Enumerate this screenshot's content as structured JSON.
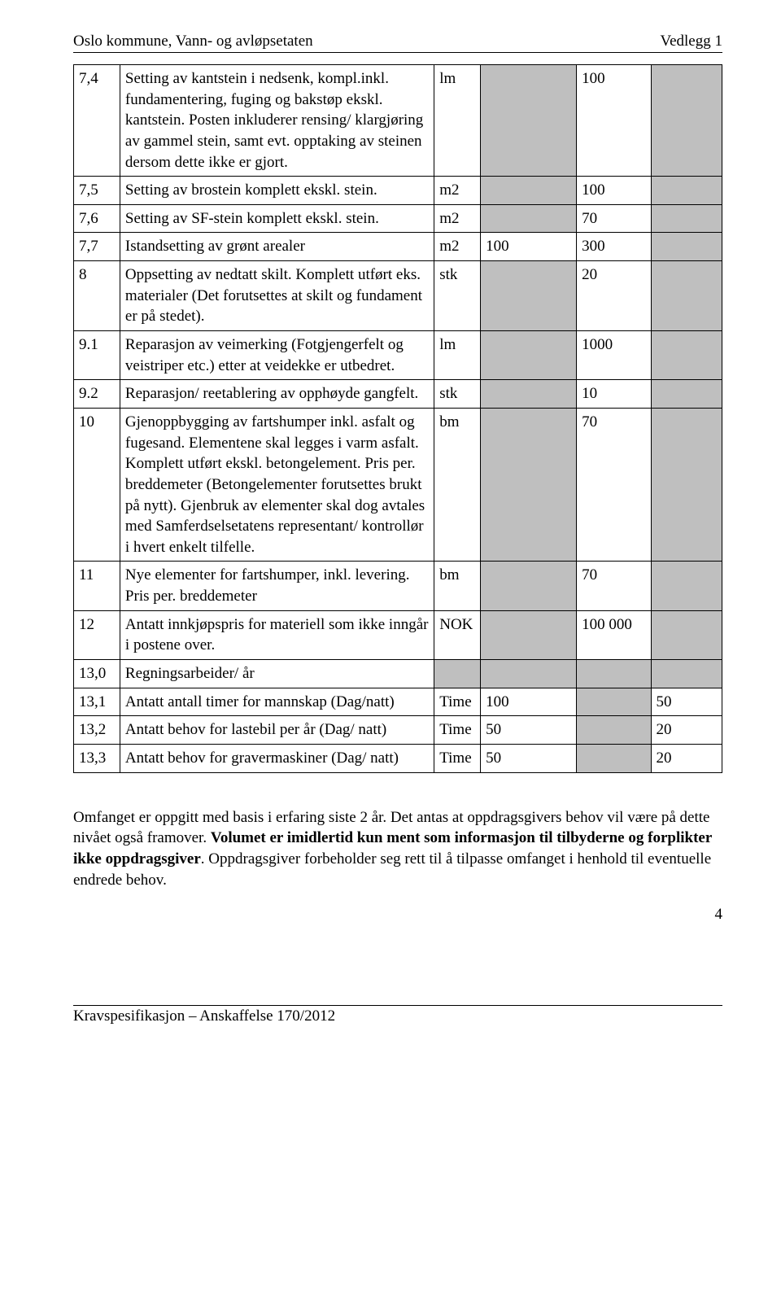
{
  "header": {
    "left": "Oslo kommune, Vann- og avløpsetaten",
    "right": "Vedlegg 1"
  },
  "footer": {
    "left": "Kravspesifikasjon – Anskaffelse 170/2012",
    "page": "4"
  },
  "rows": {
    "r74": {
      "id": "7,4",
      "desc": "Setting av kantstein i nedsenk, kompl.inkl. fundamentering, fuging og bakstøp ekskl. kantstein. Posten inkluderer rensing/ klargjøring av gammel stein, samt evt. opptaking av steinen dersom dette ikke er gjort.",
      "unit": "lm",
      "c4": "",
      "c5": "100",
      "c6": "",
      "shade4": true,
      "shade6": true
    },
    "r75": {
      "id": "7,5",
      "desc": "Setting av brostein komplett ekskl. stein.",
      "unit": "m2",
      "c4": "",
      "c5": "100",
      "c6": "",
      "shade4": true,
      "shade6": true
    },
    "r76": {
      "id": "7,6",
      "desc": "Setting av SF-stein komplett ekskl. stein.",
      "unit": "m2",
      "c4": "",
      "c5": "70",
      "c6": "",
      "shade4": true,
      "shade6": true
    },
    "r77": {
      "id": "7,7",
      "desc": "Istandsetting av grønt arealer",
      "unit": "m2",
      "c4": "100",
      "c5": "300",
      "c6": "",
      "shade4": false,
      "shade6": true
    },
    "r8": {
      "id": "8",
      "desc": "Oppsetting av nedtatt skilt. Komplett utført eks. materialer (Det forutsettes at skilt og fundament er på stedet).",
      "unit": "stk",
      "c4": "",
      "c5": "20",
      "c6": "",
      "shade4": true,
      "shade6": true
    },
    "r91": {
      "id": "9.1",
      "desc": "Reparasjon av veimerking (Fotgjengerfelt og veistriper etc.) etter at veidekke er utbedret.",
      "unit": "lm",
      "c4": "",
      "c5": "1000",
      "c6": "",
      "shade4": true,
      "shade6": true
    },
    "r92": {
      "id": "9.2",
      "desc": "Reparasjon/ reetablering av opphøyde gangfelt.",
      "unit": "stk",
      "c4": "",
      "c5": "10",
      "c6": "",
      "shade4": true,
      "shade6": true
    },
    "r10": {
      "id": "10",
      "desc": "Gjenoppbygging av fartshumper inkl. asfalt og fugesand. Elementene skal legges i varm asfalt. Komplett utført ekskl. betongelement. Pris per. breddemeter (Betongelementer forutsettes brukt på nytt). Gjenbruk av elementer skal dog avtales med Samferdselsetatens representant/ kontrollør i hvert enkelt tilfelle.",
      "unit": "bm",
      "c4": "",
      "c5": "70",
      "c6": "",
      "shade4": true,
      "shade6": true
    },
    "r11": {
      "id": "11",
      "desc": "Nye elementer for fartshumper, inkl. levering. Pris per. breddemeter",
      "unit": "bm",
      "c4": "",
      "c5": "70",
      "c6": "",
      "shade4": true,
      "shade6": true
    },
    "r12": {
      "id": "12",
      "desc": "Antatt innkjøpspris for materiell som ikke inngår i postene over.",
      "unit": "NOK",
      "c4": "",
      "c5": "100 000",
      "c6": "",
      "shade4": true,
      "shade6": true
    },
    "r130": {
      "id": "13,0",
      "desc": "Regningsarbeider/ år",
      "unit": "",
      "c4": "",
      "c5": "",
      "c6": "",
      "shade3": true,
      "shade4": true,
      "shade5": true,
      "shade6": true
    },
    "r131": {
      "id": "13,1",
      "desc": "Antatt antall timer for mannskap (Dag/natt)",
      "unit": "Time",
      "c4": "100",
      "c5": "",
      "c6": "50",
      "shade5": true
    },
    "r132": {
      "id": "13,2",
      "desc": "Antatt behov for lastebil per år (Dag/ natt)",
      "unit": "Time",
      "c4": "50",
      "c5": "",
      "c6": "20",
      "shade5": true
    },
    "r133": {
      "id": "13,3",
      "desc": "Antatt behov for gravermaskiner (Dag/ natt)",
      "unit": "Time",
      "c4": "50",
      "c5": "",
      "c6": "20",
      "shade5": true
    }
  },
  "bodytext": {
    "part1": "Omfanget er oppgitt med basis i erfaring siste 2 år. Det antas at oppdragsgivers behov vil være på dette nivået også framover. ",
    "bold": "Volumet er imidlertid kun ment som informasjon til tilbyderne og forplikter ikke oppdragsgiver",
    "part2": ". Oppdragsgiver forbeholder seg rett til å tilpasse omfanget i henhold til eventuelle endrede behov."
  }
}
